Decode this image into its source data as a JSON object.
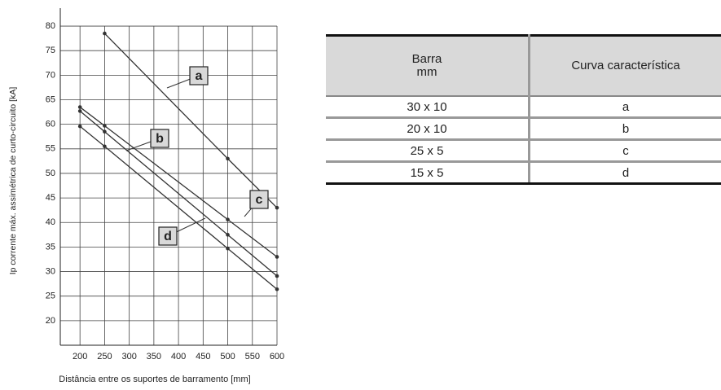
{
  "chart_data": {
    "type": "line",
    "xlabel": "Distância entre os suportes de barramento [mm]",
    "ylabel": "Ip corrente máx. assimétrica de curto-circuito [kA]",
    "xlim": [
      160,
      600
    ],
    "xticks": [
      200,
      250,
      300,
      350,
      400,
      450,
      500,
      550,
      600
    ],
    "ylim": [
      15,
      82
    ],
    "yticks": [
      20,
      25,
      30,
      35,
      40,
      45,
      50,
      55,
      60,
      65,
      70,
      75,
      80
    ],
    "grid": true,
    "series": [
      {
        "name": "a",
        "color": "#333333",
        "x": [
          250,
          500,
          600
        ],
        "values": [
          78.5,
          53,
          43
        ]
      },
      {
        "name": "b",
        "color": "#333333",
        "x": [
          200,
          250,
          500,
          600
        ],
        "values": [
          62.7,
          58.5,
          37.5,
          29.1
        ]
      },
      {
        "name": "c",
        "color": "#333333",
        "x": [
          200,
          250,
          500,
          600
        ],
        "values": [
          63.5,
          59.7,
          40.6,
          33
        ]
      },
      {
        "name": "d",
        "color": "#333333",
        "x": [
          200,
          250,
          500,
          600
        ],
        "values": [
          59.6,
          55.5,
          34.7,
          26.4
        ]
      }
    ]
  },
  "table": {
    "columns": [
      "Barra\nmm",
      "Curva característica"
    ],
    "rows": [
      [
        "30 x 10",
        "a"
      ],
      [
        "20 x 10",
        "b"
      ],
      [
        "25 x 5",
        "c"
      ],
      [
        "15 x 5",
        "d"
      ]
    ]
  }
}
